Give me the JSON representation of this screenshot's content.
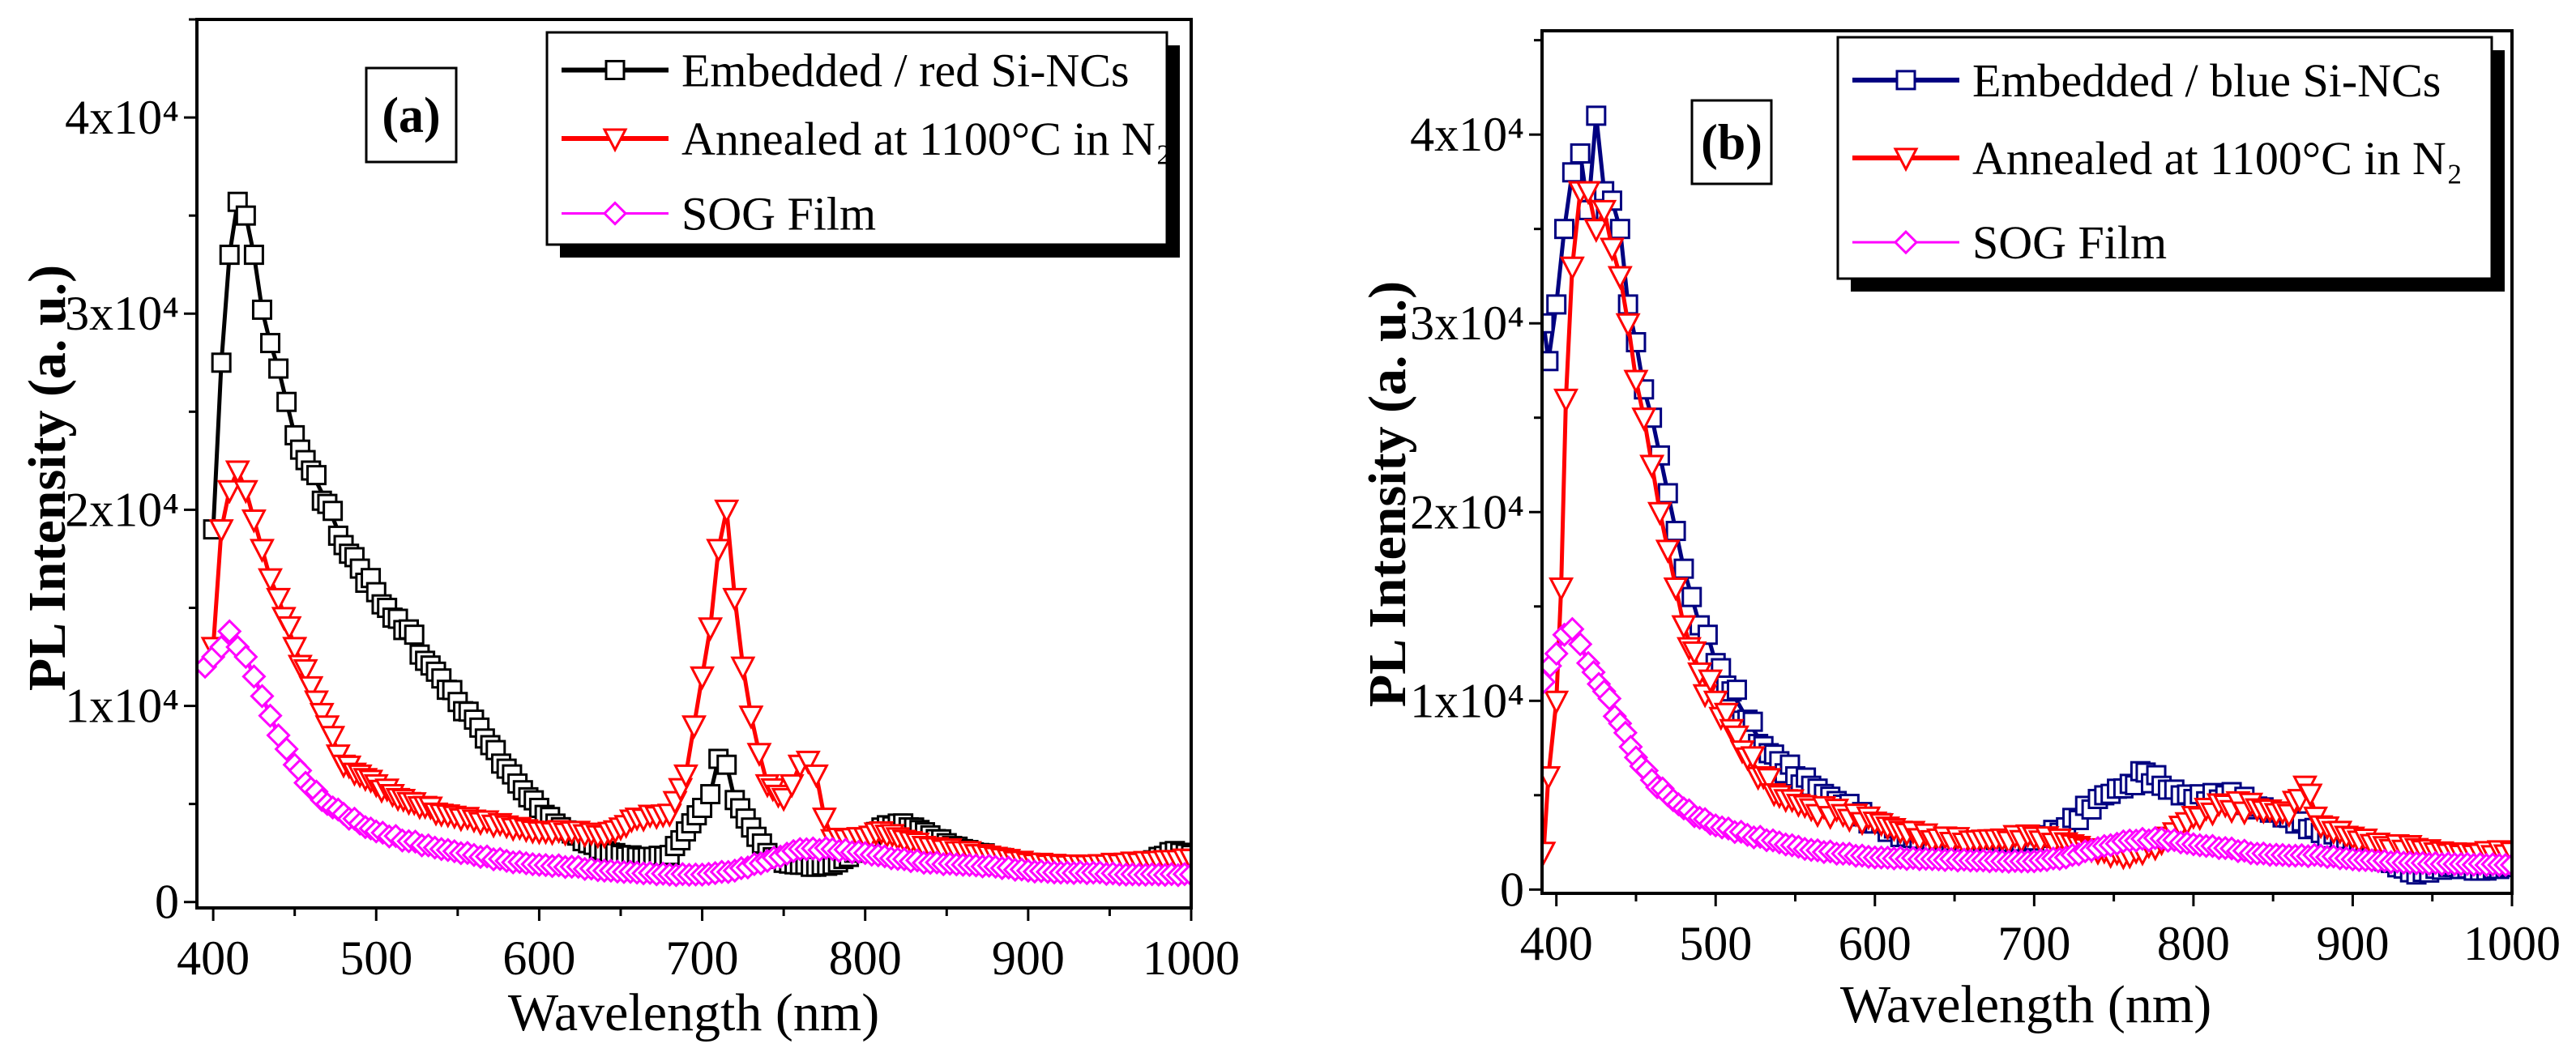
{
  "chart_data": [
    {
      "type": "line",
      "panel_label": "(a)",
      "xlabel": "Wavelength (nm)",
      "ylabel": "PL Intensity (a. u.)",
      "xlim": [
        390,
        1000
      ],
      "ylim": [
        -300,
        45000
      ],
      "x_ticks": [
        400,
        500,
        600,
        700,
        800,
        900,
        1000
      ],
      "x_tick_labels": [
        "400",
        "500",
        "600",
        "700",
        "800",
        "900",
        "1000"
      ],
      "y_ticks": [
        0,
        10000,
        20000,
        30000,
        40000
      ],
      "y_tick_labels": [
        "0",
        "1x10⁴",
        "2x10⁴",
        "3x10⁴",
        "4x10⁴"
      ],
      "legend_position": "top-right",
      "series": [
        {
          "name": "Embedded / red Si-NCs",
          "color": "#000000",
          "marker": "square",
          "x": [
            400,
            405,
            410,
            415,
            420,
            425,
            430,
            435,
            440,
            445,
            450,
            460,
            470,
            480,
            490,
            500,
            510,
            520,
            530,
            540,
            550,
            560,
            570,
            580,
            590,
            600,
            610,
            620,
            630,
            640,
            650,
            660,
            670,
            680,
            690,
            700,
            705,
            710,
            715,
            720,
            730,
            740,
            750,
            760,
            770,
            780,
            790,
            800,
            810,
            820,
            830,
            840,
            850,
            860,
            870,
            880,
            890,
            900,
            920,
            940,
            960,
            970,
            980,
            990,
            1000
          ],
          "y": [
            19000,
            27500,
            33000,
            35700,
            35000,
            33000,
            30200,
            28500,
            27200,
            25500,
            23800,
            22000,
            20300,
            18200,
            17000,
            15800,
            14500,
            13900,
            12300,
            11400,
            10200,
            9300,
            8000,
            6800,
            5700,
            4800,
            4000,
            3500,
            3000,
            2600,
            2400,
            2300,
            2300,
            2400,
            3600,
            4800,
            5500,
            7300,
            7000,
            5200,
            3800,
            2500,
            2000,
            1900,
            1800,
            1900,
            2300,
            3100,
            3800,
            4000,
            3800,
            3400,
            3000,
            2700,
            2500,
            2300,
            2100,
            2000,
            1800,
            1700,
            1600,
            1700,
            2300,
            2600,
            2400
          ]
        },
        {
          "name": "Annealed at 1100°C in N₂",
          "color": "#ff0000",
          "marker": "triangle-down",
          "x": [
            400,
            405,
            410,
            415,
            420,
            425,
            430,
            435,
            440,
            450,
            460,
            470,
            480,
            490,
            500,
            510,
            520,
            530,
            540,
            560,
            580,
            600,
            620,
            640,
            650,
            660,
            680,
            690,
            695,
            700,
            705,
            710,
            715,
            720,
            725,
            730,
            735,
            740,
            750,
            755,
            760,
            765,
            770,
            775,
            780,
            800,
            810,
            820,
            840,
            860,
            880,
            900,
            920,
            940,
            960,
            980,
            1000
          ],
          "y": [
            13000,
            19000,
            21000,
            22000,
            21000,
            19500,
            18000,
            16500,
            15500,
            13000,
            11000,
            9000,
            7000,
            6500,
            6000,
            5500,
            5100,
            4900,
            4500,
            4200,
            3900,
            3600,
            3600,
            3400,
            3800,
            4300,
            4500,
            6500,
            9000,
            11500,
            14000,
            18000,
            20000,
            15500,
            12000,
            9500,
            7600,
            6000,
            5300,
            6000,
            7000,
            7200,
            6500,
            4300,
            3200,
            3300,
            3600,
            3300,
            2800,
            2600,
            2300,
            2000,
            1900,
            1900,
            2000,
            2100,
            2200
          ]
        },
        {
          "name": "SOG Film",
          "color": "#ff00ff",
          "marker": "diamond",
          "x": [
            395,
            400,
            405,
            410,
            415,
            420,
            425,
            430,
            435,
            440,
            445,
            450,
            460,
            470,
            480,
            490,
            500,
            520,
            540,
            560,
            580,
            600,
            620,
            640,
            660,
            680,
            700,
            720,
            740,
            760,
            780,
            800,
            820,
            840,
            860,
            880,
            900,
            920,
            940,
            960,
            980,
            1000
          ],
          "y": [
            12000,
            12500,
            13000,
            13800,
            13000,
            12500,
            11500,
            10500,
            9500,
            8500,
            7800,
            7000,
            5800,
            5000,
            4500,
            4000,
            3600,
            3100,
            2700,
            2400,
            2100,
            1900,
            1800,
            1600,
            1500,
            1400,
            1400,
            1600,
            2100,
            2700,
            2700,
            2500,
            2200,
            2000,
            1900,
            1800,
            1600,
            1500,
            1500,
            1400,
            1400,
            1400
          ]
        }
      ]
    },
    {
      "type": "line",
      "panel_label": "(b)",
      "xlabel": "Wavelength (nm)",
      "ylabel": "PL Intensity (a. u.)",
      "xlim": [
        391,
        1000
      ],
      "ylim": [
        -200,
        45500
      ],
      "x_ticks": [
        400,
        500,
        600,
        700,
        800,
        900,
        1000
      ],
      "x_tick_labels": [
        "400",
        "500",
        "600",
        "700",
        "800",
        "900",
        "1000"
      ],
      "y_ticks": [
        0,
        10000,
        20000,
        30000,
        40000
      ],
      "y_tick_labels": [
        "0",
        "1x10⁴",
        "2x10⁴",
        "3x10⁴",
        "4x10⁴"
      ],
      "legend_position": "top-right",
      "series": [
        {
          "name": "Embedded / blue Si-NCs",
          "color": "#000080",
          "marker": "square",
          "x": [
            392,
            395,
            400,
            405,
            410,
            415,
            420,
            425,
            430,
            435,
            440,
            445,
            450,
            455,
            460,
            465,
            470,
            475,
            480,
            485,
            490,
            495,
            500,
            510,
            520,
            530,
            540,
            550,
            560,
            580,
            600,
            620,
            640,
            660,
            680,
            700,
            720,
            740,
            760,
            770,
            780,
            800,
            820,
            840,
            860,
            880,
            900,
            920,
            940,
            960,
            980,
            1000
          ],
          "y": [
            30000,
            28000,
            31000,
            35000,
            38000,
            39000,
            36000,
            41000,
            37000,
            36500,
            35000,
            31000,
            29000,
            26500,
            25000,
            23000,
            21000,
            19000,
            17000,
            15500,
            14000,
            13500,
            12000,
            10500,
            9000,
            7600,
            6800,
            6000,
            5500,
            4500,
            3500,
            2800,
            2500,
            2400,
            2500,
            2600,
            3300,
            4800,
            5600,
            6200,
            5500,
            4800,
            5000,
            4400,
            3800,
            3000,
            2400,
            1500,
            800,
            1200,
            1000,
            1200
          ]
        },
        {
          "name": "Annealed at 1100°C in N₂",
          "color": "#ff0000",
          "marker": "triangle-down",
          "x": [
            392,
            395,
            400,
            403,
            406,
            410,
            415,
            420,
            425,
            430,
            435,
            440,
            445,
            450,
            455,
            460,
            465,
            470,
            475,
            480,
            490,
            500,
            510,
            520,
            530,
            540,
            560,
            580,
            600,
            620,
            640,
            660,
            680,
            700,
            720,
            740,
            760,
            780,
            800,
            820,
            840,
            860,
            870,
            880,
            900,
            920,
            940,
            960,
            980,
            1000
          ],
          "y": [
            2000,
            6000,
            10000,
            16000,
            26000,
            33000,
            37000,
            37000,
            35000,
            36000,
            34000,
            32500,
            30000,
            27000,
            25000,
            22500,
            20000,
            18000,
            16000,
            14000,
            11500,
            10000,
            8500,
            7000,
            6000,
            5000,
            4300,
            4000,
            3600,
            3000,
            2700,
            2600,
            2700,
            2800,
            2500,
            2000,
            1800,
            2500,
            3900,
            4500,
            4300,
            4000,
            5500,
            3400,
            2800,
            2300,
            2200,
            1900,
            1900,
            2000
          ]
        },
        {
          "name": "SOG Film",
          "color": "#ff00ff",
          "marker": "diamond",
          "x": [
            392,
            400,
            405,
            410,
            415,
            420,
            430,
            440,
            450,
            460,
            470,
            480,
            490,
            500,
            520,
            540,
            560,
            580,
            600,
            640,
            680,
            700,
            720,
            740,
            760,
            780,
            800,
            820,
            840,
            860,
            880,
            900,
            940,
            1000
          ],
          "y": [
            11000,
            12500,
            13500,
            13800,
            13000,
            12000,
            10500,
            8800,
            7000,
            5800,
            5000,
            4300,
            3800,
            3400,
            2900,
            2500,
            2100,
            1900,
            1700,
            1600,
            1500,
            1500,
            1700,
            2200,
            2600,
            2700,
            2400,
            2200,
            1900,
            1800,
            1800,
            1600,
            1400,
            1300
          ]
        }
      ]
    }
  ]
}
